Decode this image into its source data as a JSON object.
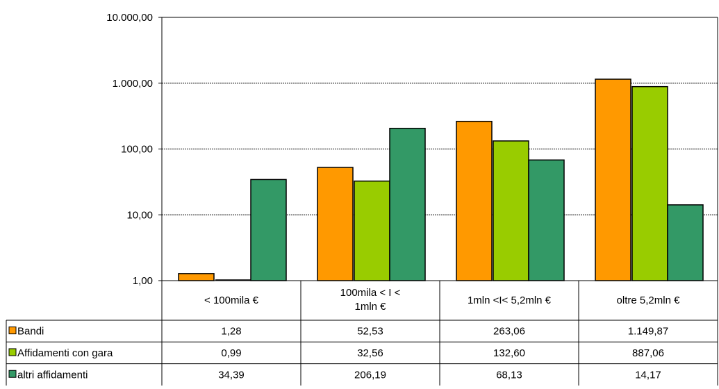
{
  "chart_data": {
    "type": "bar",
    "title": "",
    "xlabel": "",
    "ylabel": "",
    "y_scale": "log",
    "ylim": [
      1,
      10000
    ],
    "y_ticks": [
      {
        "value": 1,
        "label": "1,00"
      },
      {
        "value": 10,
        "label": "10,00"
      },
      {
        "value": 100,
        "label": "100,00"
      },
      {
        "value": 1000,
        "label": "1.000,00"
      },
      {
        "value": 10000,
        "label": "10.000,00"
      }
    ],
    "grid": true,
    "legend": "data-table",
    "categories": [
      {
        "line1": "< 100mila €",
        "line2": ""
      },
      {
        "line1": "100mila  < I <",
        "line2": "1mln  €"
      },
      {
        "line1": "1mln  <I< 5,2mln  €",
        "line2": ""
      },
      {
        "line1": "oltre  5,2mln  €",
        "line2": ""
      }
    ],
    "series": [
      {
        "name": "Bandi",
        "color": "#FF9900",
        "values": [
          1.28,
          52.53,
          263.06,
          1149.87
        ],
        "labels": [
          "1,28",
          "52,53",
          "263,06",
          "1.149,87"
        ]
      },
      {
        "name": "Affidamenti con gara",
        "color": "#99CC00",
        "values": [
          0.99,
          32.56,
          132.6,
          887.06
        ],
        "labels": [
          "0,99",
          "32,56",
          "132,60",
          "887,06"
        ]
      },
      {
        "name": "altri affidamenti",
        "color": "#339966",
        "values": [
          34.39,
          206.19,
          68.13,
          14.17
        ],
        "labels": [
          "34,39",
          "206,19",
          "68,13",
          "14,17"
        ]
      }
    ]
  }
}
